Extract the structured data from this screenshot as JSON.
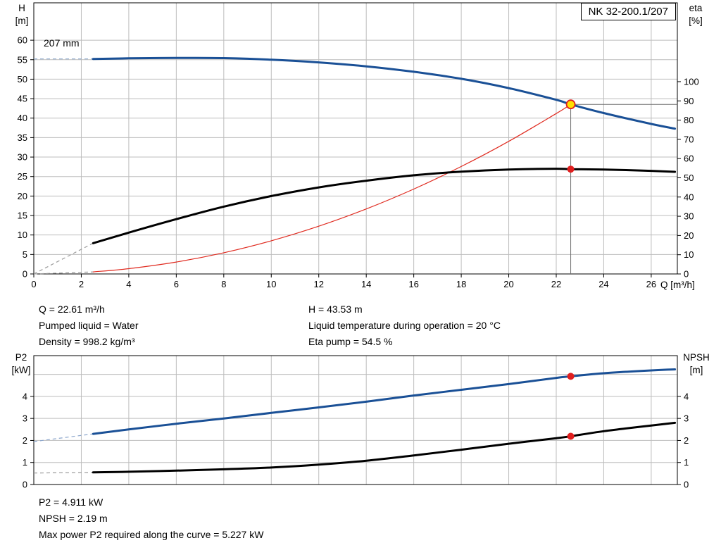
{
  "pump_name": "NK 32-200.1/207",
  "impeller_label": "207 mm",
  "colors": {
    "curve_blue": "#1a5096",
    "curve_black": "#000000",
    "curve_red": "#e02b20",
    "grid": "#bdbdbd",
    "axis": "#000000",
    "duty_line": "#6e6e6e",
    "duty_dot_red": "#e01f1f",
    "duty_dot_yellow": "#ffdf00",
    "lead_gray": "#9b9b9b",
    "lead_blue": "#8ca6cc"
  },
  "info_top": {
    "left": [
      "Q = 22.61 m³/h",
      "Pumped liquid = Water",
      "Density = 998.2 kg/m³"
    ],
    "right": [
      "H = 43.53 m",
      "Liquid temperature during operation = 20 °C",
      "Eta pump = 54.5 %"
    ]
  },
  "info_bottom": [
    "P2 = 4.911 kW",
    "NPSH = 2.19 m",
    "Max power P2 required along the curve = 5.227 kW"
  ],
  "chart_data": [
    {
      "type": "line",
      "name": "qh-eta-chart",
      "title": "NK 32-200.1/207",
      "x_axis": {
        "label": "Q [m³/h]",
        "min": 0,
        "max": 27.1,
        "ticks": [
          0,
          2,
          4,
          6,
          8,
          10,
          12,
          14,
          16,
          18,
          20,
          22,
          24,
          26
        ]
      },
      "y_left": {
        "label_lines": [
          "H",
          "[m]"
        ],
        "min": 0,
        "max": 69.6,
        "ticks": [
          0,
          5,
          10,
          15,
          20,
          25,
          30,
          35,
          40,
          45,
          50,
          55,
          60
        ]
      },
      "y_right": {
        "label_lines": [
          "eta",
          "[%]"
        ],
        "min": 0,
        "max": 141,
        "ticks": [
          0,
          10,
          20,
          30,
          40,
          50,
          60,
          70,
          80,
          90,
          100
        ]
      },
      "series": [
        {
          "name": "affinity-parabola",
          "axis": "left",
          "color": "#e02b20",
          "width": 1.2,
          "lead_color": "#9b9b9b",
          "lead": [
            [
              0,
              0
            ],
            [
              2.5,
              0.53
            ]
          ],
          "points": [
            [
              2.5,
              0.53
            ],
            [
              4,
              1.36
            ],
            [
              6,
              3.06
            ],
            [
              8,
              5.45
            ],
            [
              10,
              8.51
            ],
            [
              12,
              12.26
            ],
            [
              14,
              16.68
            ],
            [
              16,
              21.79
            ],
            [
              18,
              27.58
            ],
            [
              20,
              34.04
            ],
            [
              22,
              41.19
            ],
            [
              22.61,
              43.53
            ]
          ]
        },
        {
          "name": "eta-curve",
          "axis": "right",
          "color": "#000000",
          "width": 3,
          "lead_color": "#9b9b9b",
          "lead": [
            [
              0,
              0
            ],
            [
              2.5,
              16
            ]
          ],
          "points": [
            [
              2.5,
              16
            ],
            [
              4,
              21.5
            ],
            [
              6,
              28.5
            ],
            [
              8,
              35
            ],
            [
              10,
              40.5
            ],
            [
              12,
              45
            ],
            [
              14,
              48.5
            ],
            [
              16,
              51.3
            ],
            [
              18,
              53.2
            ],
            [
              20,
              54.3
            ],
            [
              22,
              54.7
            ],
            [
              22.61,
              54.5
            ],
            [
              24,
              54.3
            ],
            [
              26,
              53.6
            ],
            [
              27,
              53.1
            ]
          ]
        },
        {
          "name": "head-curve-207mm",
          "axis": "left",
          "color": "#1a5096",
          "width": 3,
          "lead_color": "#8ca6cc",
          "lead": [
            [
              0,
              55.2
            ],
            [
              2.5,
              55.2
            ]
          ],
          "points": [
            [
              2.5,
              55.2
            ],
            [
              4,
              55.35
            ],
            [
              6,
              55.45
            ],
            [
              8,
              55.4
            ],
            [
              10,
              55.0
            ],
            [
              12,
              54.3
            ],
            [
              14,
              53.3
            ],
            [
              16,
              51.9
            ],
            [
              18,
              50.1
            ],
            [
              20,
              47.7
            ],
            [
              22,
              44.7
            ],
            [
              22.61,
              43.53
            ],
            [
              24,
              41.3
            ],
            [
              26,
              38.5
            ],
            [
              27,
              37.3
            ]
          ]
        }
      ],
      "markers": [
        {
          "type": "vline",
          "axis": "left",
          "x": 22.61,
          "y": 43.53
        },
        {
          "type": "hline",
          "axis": "left",
          "x": 22.61,
          "y": 43.53
        },
        {
          "type": "dot",
          "axis": "right",
          "x": 22.61,
          "y": 54.5,
          "style": "red"
        },
        {
          "type": "dot",
          "axis": "left",
          "x": 22.61,
          "y": 43.53,
          "style": "yellow"
        }
      ],
      "duty_point": {
        "Q_m3h": 22.61,
        "H_m": 43.53,
        "eta_pct": 54.5
      }
    },
    {
      "type": "line",
      "name": "p2-npsh-chart",
      "title": "",
      "x_axis": {
        "label": "",
        "min": 0,
        "max": 27.1,
        "ticks": [],
        "grid": [
          0,
          2,
          4,
          6,
          8,
          10,
          12,
          14,
          16,
          18,
          20,
          22,
          24,
          26
        ]
      },
      "y_left": {
        "label_lines": [
          "P2",
          "[kW]"
        ],
        "min": 0,
        "max": 5.85,
        "ticks": [
          0,
          1,
          2,
          3,
          4
        ],
        "grid": [
          1,
          2,
          3,
          4,
          5
        ]
      },
      "y_right": {
        "label_lines": [
          "NPSH",
          "[m]"
        ],
        "min": 0,
        "max": 5.85,
        "ticks": [
          0,
          1,
          2,
          3,
          4
        ]
      },
      "series": [
        {
          "name": "p2-curve",
          "axis": "left",
          "color": "#1a5096",
          "width": 3,
          "lead_color": "#8ca6cc",
          "lead": [
            [
              0,
              1.95
            ],
            [
              2.5,
              2.3
            ]
          ],
          "points": [
            [
              2.5,
              2.3
            ],
            [
              4,
              2.5
            ],
            [
              6,
              2.76
            ],
            [
              8,
              3.0
            ],
            [
              10,
              3.25
            ],
            [
              12,
              3.5
            ],
            [
              14,
              3.76
            ],
            [
              16,
              4.04
            ],
            [
              18,
              4.3
            ],
            [
              20,
              4.56
            ],
            [
              22,
              4.84
            ],
            [
              22.61,
              4.911
            ],
            [
              24,
              5.05
            ],
            [
              26,
              5.18
            ],
            [
              27,
              5.227
            ]
          ]
        },
        {
          "name": "npsh-curve",
          "axis": "right",
          "color": "#000000",
          "width": 3,
          "lead_color": "#9b9b9b",
          "lead": [
            [
              0,
              0.52
            ],
            [
              2.5,
              0.55
            ]
          ],
          "points": [
            [
              2.5,
              0.55
            ],
            [
              4,
              0.58
            ],
            [
              6,
              0.63
            ],
            [
              8,
              0.69
            ],
            [
              10,
              0.77
            ],
            [
              12,
              0.9
            ],
            [
              14,
              1.08
            ],
            [
              16,
              1.32
            ],
            [
              18,
              1.58
            ],
            [
              20,
              1.85
            ],
            [
              22,
              2.1
            ],
            [
              22.61,
              2.19
            ],
            [
              24,
              2.42
            ],
            [
              26,
              2.68
            ],
            [
              27,
              2.8
            ]
          ]
        }
      ],
      "markers": [
        {
          "type": "dot",
          "axis": "left",
          "x": 22.61,
          "y": 4.911,
          "style": "red"
        },
        {
          "type": "dot",
          "axis": "right",
          "x": 22.61,
          "y": 2.19,
          "style": "red"
        }
      ],
      "duty_point": {
        "Q_m3h": 22.61,
        "P2_kW": 4.911,
        "NPSH_m": 2.19,
        "P2_max_kW": 5.227
      }
    }
  ]
}
